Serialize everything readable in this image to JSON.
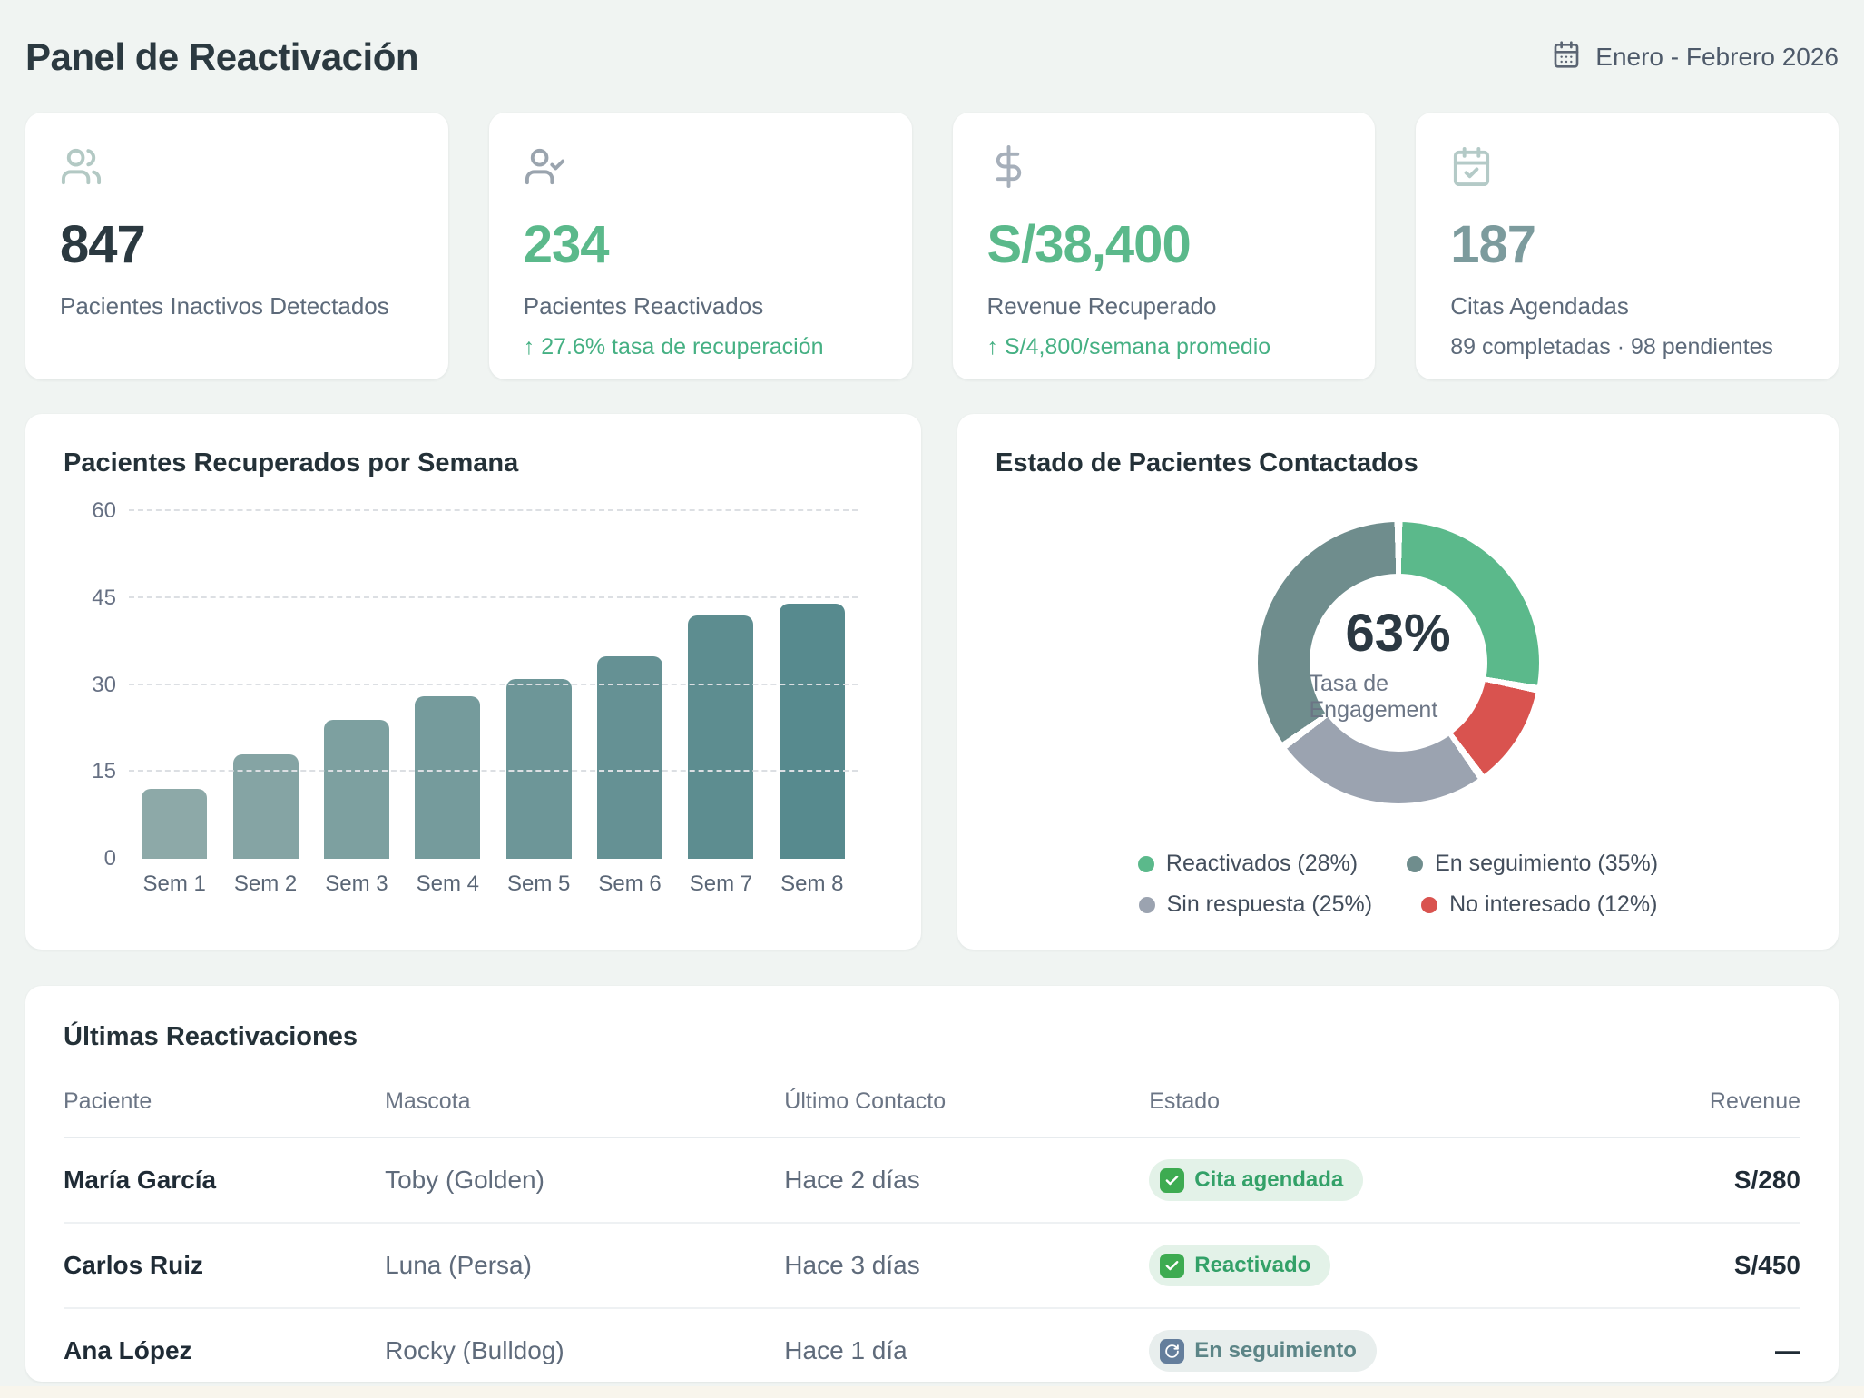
{
  "header": {
    "title": "Panel de Reactivación",
    "period": "Enero - Febrero 2026"
  },
  "kpis": [
    {
      "icon": "users-icon",
      "value": "847",
      "label": "Pacientes Inactivos Detectados"
    },
    {
      "icon": "user-check-icon",
      "value": "234",
      "label": "Pacientes Reactivados",
      "trend": "↑ 27.6% tasa de recuperación"
    },
    {
      "icon": "dollar-icon",
      "value": "S/38,400",
      "label": "Revenue Recuperado",
      "trend": "↑ S/4,800/semana promedio"
    },
    {
      "icon": "calendar-check-icon",
      "value": "187",
      "label": "Citas Agendadas",
      "detail": "89 completadas · 98 pendientes"
    }
  ],
  "chart_data": [
    {
      "type": "bar",
      "title": "Pacientes Recuperados por Semana",
      "categories": [
        "Sem 1",
        "Sem 2",
        "Sem 3",
        "Sem 4",
        "Sem 5",
        "Sem 6",
        "Sem 7",
        "Sem 8"
      ],
      "values": [
        12,
        18,
        24,
        28,
        31,
        35,
        42,
        44
      ],
      "xlabel": "",
      "ylabel": "",
      "ylim": [
        0,
        60
      ],
      "yticks": [
        0,
        15,
        30,
        45,
        60
      ],
      "grid": "horizontal-dashed",
      "bar_colors": [
        "#8da9a8",
        "#85a4a4",
        "#7da0a0",
        "#759b9c",
        "#6d9698",
        "#659194",
        "#5d8d90",
        "#578a8e"
      ]
    },
    {
      "type": "pie",
      "title": "Estado de Pacientes Contactados",
      "center_value": "63%",
      "center_label": "Tasa de Engagement",
      "segments": [
        {
          "name": "Reactivados",
          "value": 28,
          "color": "#5bb98b"
        },
        {
          "name": "No interesado",
          "value": 12,
          "color": "#d9534f"
        },
        {
          "name": "Sin respuesta",
          "value": 25,
          "color": "#9ba3b0"
        },
        {
          "name": "En seguimiento",
          "value": 35,
          "color": "#6f8d8d"
        }
      ],
      "legend": [
        {
          "label": "Reactivados (28%)",
          "color": "#5bb98b"
        },
        {
          "label": "En seguimiento (35%)",
          "color": "#6f8d8d"
        },
        {
          "label": "Sin respuesta (25%)",
          "color": "#9ba3b0"
        },
        {
          "label": "No interesado (12%)",
          "color": "#d9534f"
        }
      ],
      "legend_position": "bottom"
    }
  ],
  "table": {
    "title": "Últimas Reactivaciones",
    "columns": [
      "Paciente",
      "Mascota",
      "Último Contacto",
      "Estado",
      "Revenue"
    ],
    "rows": [
      {
        "paciente": "María García",
        "mascota": "Toby (Golden)",
        "ultimo_contacto": "Hace 2 días",
        "estado": {
          "text": "Cita agendada",
          "variant": "green",
          "icon": "check-icon"
        },
        "revenue": "S/280"
      },
      {
        "paciente": "Carlos Ruiz",
        "mascota": "Luna (Persa)",
        "ultimo_contacto": "Hace 3 días",
        "estado": {
          "text": "Reactivado",
          "variant": "green",
          "icon": "check-icon"
        },
        "revenue": "S/450"
      },
      {
        "paciente": "Ana López",
        "mascota": "Rocky (Bulldog)",
        "ultimo_contacto": "Hace 1 día",
        "estado": {
          "text": "En seguimiento",
          "variant": "gray",
          "icon": "refresh-icon"
        },
        "revenue": "—"
      }
    ]
  },
  "colors": {
    "page_bg": "#f0f4f2",
    "accent_green": "#5bb98b",
    "accent_teal": "#7c9b9d",
    "status_red": "#d9534f",
    "status_gray": "#9ba3b0",
    "status_slate": "#6f8d8d",
    "badge_green_bg": "#e3f2e8",
    "badge_gray_bg": "#e8eeed",
    "bottom_strip": "#f8f5ec"
  }
}
